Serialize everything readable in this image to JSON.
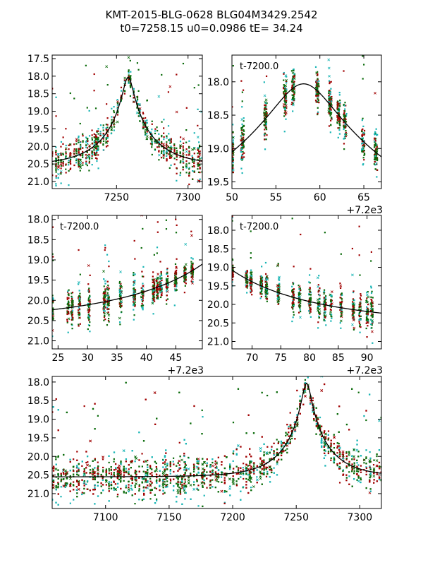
{
  "title": {
    "line1": "KMT-2015-BLG-0628 BLG04M3429.2542",
    "line2": "t0=7258.15 u0=0.0986 tE=  34.24"
  },
  "model": {
    "t0": 7258.15,
    "u0": 0.0986,
    "tE": 34.24,
    "base_mag": 20.55
  },
  "colors": {
    "green": "#0b6b0b",
    "red": "#a00000",
    "cyan": "#19b5b5",
    "curve": "#000000"
  },
  "chart_data": [
    {
      "id": "panel-1",
      "type": "scatter",
      "xlim": [
        7205,
        7310
      ],
      "ylim": [
        21.2,
        17.4
      ],
      "xticks": [
        7250,
        7300
      ],
      "xtick_labels": [
        "7250",
        "7300"
      ],
      "yticks": [
        17.5,
        18.0,
        18.5,
        19.0,
        19.5,
        20.0,
        20.5,
        21.0
      ],
      "ytick_labels": [
        "17.5",
        "18.0",
        "18.5",
        "19.0",
        "19.5",
        "20.0",
        "20.5",
        "21.0"
      ],
      "inner_label": "",
      "x_offset_label": ""
    },
    {
      "id": "panel-2",
      "type": "scatter",
      "xlim": [
        50,
        67
      ],
      "ylim": [
        19.6,
        17.6
      ],
      "xticks": [
        50,
        55,
        60,
        65
      ],
      "xtick_labels": [
        "50",
        "55",
        "60",
        "65"
      ],
      "yticks": [
        18.0,
        18.5,
        19.0,
        19.5
      ],
      "ytick_labels": [
        "18.0",
        "18.5",
        "19.0",
        "19.5"
      ],
      "inner_label": "t-7200.0",
      "x_offset_label": "+7.2e3"
    },
    {
      "id": "panel-3",
      "type": "scatter",
      "xlim": [
        24,
        49.5
      ],
      "ylim": [
        21.2,
        17.9
      ],
      "xticks": [
        25,
        30,
        35,
        40,
        45
      ],
      "xtick_labels": [
        "25",
        "30",
        "35",
        "40",
        "45"
      ],
      "yticks": [
        18.0,
        18.5,
        19.0,
        19.5,
        20.0,
        20.5,
        21.0
      ],
      "ytick_labels": [
        "18.0",
        "18.5",
        "19.0",
        "19.5",
        "20.0",
        "20.5",
        "21.0"
      ],
      "inner_label": "t-7200.0",
      "x_offset_label": "+7.2e3"
    },
    {
      "id": "panel-4",
      "type": "scatter",
      "xlim": [
        66.5,
        92.5
      ],
      "ylim": [
        21.2,
        17.6
      ],
      "xticks": [
        70,
        75,
        80,
        85,
        90
      ],
      "xtick_labels": [
        "70",
        "75",
        "80",
        "85",
        "90"
      ],
      "yticks": [
        18.0,
        18.5,
        19.0,
        19.5,
        20.0,
        20.5,
        21.0
      ],
      "ytick_labels": [
        "18.0",
        "18.5",
        "19.0",
        "19.5",
        "20.0",
        "20.5",
        "21.0"
      ],
      "inner_label": "t-7200.0",
      "x_offset_label": "+7.2e3"
    },
    {
      "id": "panel-5",
      "type": "scatter",
      "xlim": [
        7058,
        7317
      ],
      "ylim": [
        21.4,
        17.85
      ],
      "xticks": [
        7100,
        7150,
        7200,
        7250,
        7300
      ],
      "xtick_labels": [
        "7100",
        "7150",
        "7200",
        "7250",
        "7300"
      ],
      "yticks": [
        18.0,
        18.5,
        19.0,
        19.5,
        20.0,
        20.5,
        21.0
      ],
      "ytick_labels": [
        "18.0",
        "18.5",
        "19.0",
        "19.5",
        "20.0",
        "20.5",
        "21.0"
      ],
      "inner_label": "",
      "x_offset_label": ""
    }
  ]
}
